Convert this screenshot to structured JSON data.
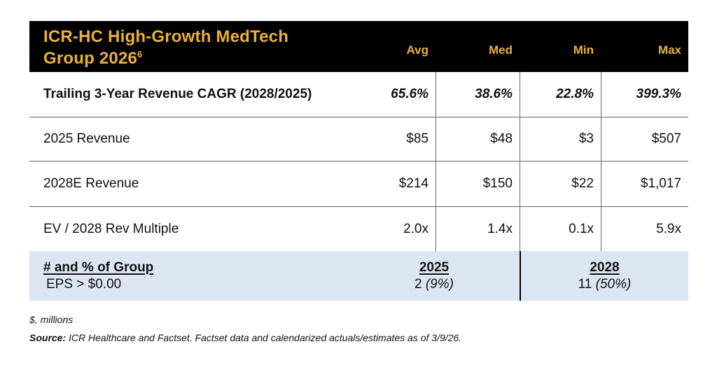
{
  "colors": {
    "header_bg": "#000000",
    "header_text": "#E9B13C",
    "summary_bg": "#DCE6F2",
    "grid_line": "#666666",
    "summary_divider": "#000000",
    "body_text": "#111111"
  },
  "header": {
    "title_line1": "ICR-HC High-Growth MedTech",
    "title_line2": "Group 2026",
    "title_superscript": "6",
    "columns": [
      "Avg",
      "Med",
      "Min",
      "Max"
    ]
  },
  "rows": [
    {
      "label": "Trailing 3-Year Revenue CAGR (2028/2025)",
      "values": [
        "65.6%",
        "38.6%",
        "22.8%",
        "399.3%"
      ]
    },
    {
      "label": "2025 Revenue",
      "values": [
        "$85",
        "$48",
        "$3",
        "$507"
      ]
    },
    {
      "label": "2028E Revenue",
      "values": [
        "$214",
        "$150",
        "$22",
        "$1,017"
      ]
    },
    {
      "label": "EV / 2028 Rev Multiple",
      "values": [
        "2.0x",
        "1.4x",
        "0.1x",
        "5.9x"
      ]
    }
  ],
  "summary": {
    "label_line1": "# and % of Group",
    "label_line2": "EPS > $0.00",
    "groups": [
      {
        "year": "2025",
        "count": "2",
        "pct": "(9%)"
      },
      {
        "year": "2028",
        "count": "11",
        "pct": "(50%)"
      }
    ]
  },
  "footnotes": {
    "units": "$, millions",
    "source_label": "Source:",
    "source_text": " ICR Healthcare and Factset. Factset data and calendarized actuals/estimates as of 3/9/26."
  },
  "chart_data": {
    "type": "table",
    "title": "ICR-HC High-Growth MedTech Group 2026",
    "title_footnote_marker": "6",
    "columns": [
      "Avg",
      "Med",
      "Min",
      "Max"
    ],
    "rows": [
      {
        "label": "Trailing 3-Year Revenue CAGR (2028/2025)",
        "values": [
          "65.6%",
          "38.6%",
          "22.8%",
          "399.3%"
        ]
      },
      {
        "label": "2025 Revenue",
        "values": [
          "$85",
          "$48",
          "$3",
          "$507"
        ]
      },
      {
        "label": "2028E Revenue",
        "values": [
          "$214",
          "$150",
          "$22",
          "$1,017"
        ]
      },
      {
        "label": "EV / 2028 Rev Multiple",
        "values": [
          "2.0x",
          "1.4x",
          "0.1x",
          "5.9x"
        ]
      }
    ],
    "summary_row": {
      "label": "# and % of Group EPS > $0.00",
      "groups": [
        {
          "year": "2025",
          "count": 2,
          "pct_of_group": "9%"
        },
        {
          "year": "2028",
          "count": 11,
          "pct_of_group": "50%"
        }
      ]
    },
    "footnotes": [
      "$, millions",
      "Source: ICR Healthcare and Factset. Factset data and calendarized actuals/estimates as of 3/9/26."
    ],
    "layout": {
      "grid": "horizontal row separators with vertical column dividers",
      "legend": "none"
    }
  }
}
